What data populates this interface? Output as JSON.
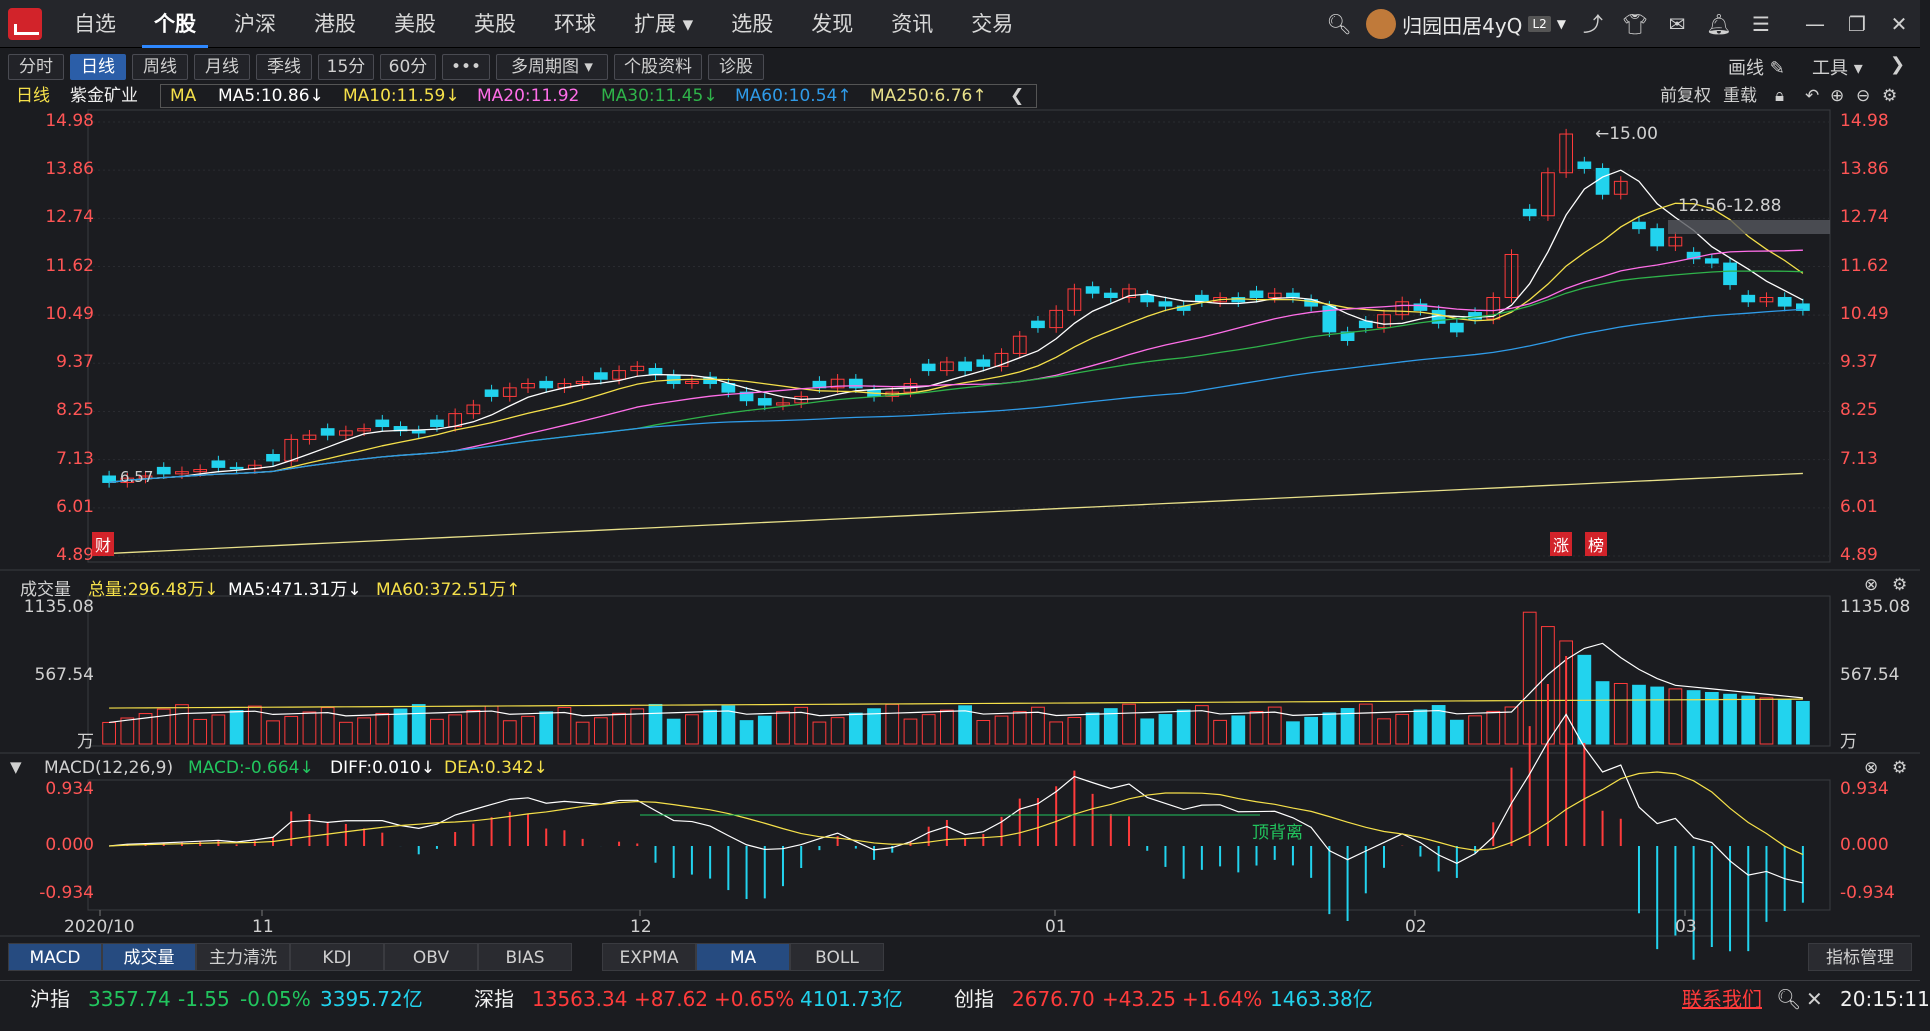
{
  "nav": {
    "items": [
      "自选",
      "个股",
      "沪深",
      "港股",
      "美股",
      "英股",
      "环球",
      "扩展",
      "选股",
      "发现",
      "资讯",
      "交易"
    ],
    "active": "个股"
  },
  "user": {
    "name": "归园田居4yQ",
    "level": "L2"
  },
  "toolbar": {
    "buttons": [
      "分时",
      "日线",
      "周线",
      "月线",
      "季线",
      "15分",
      "60分",
      "•••",
      "多周期图",
      "个股资料",
      "诊股"
    ],
    "active": "日线",
    "draw_label": "画线",
    "tools_label": "工具"
  },
  "ma_bar": {
    "period": "日线",
    "stock": "紫金矿业",
    "ma_label": "MA",
    "ma5": "MA5:10.86↓",
    "ma10": "MA10:11.59↓",
    "ma20": "MA20:11.92",
    "ma30": "MA30:11.45↓",
    "ma60": "MA60:10.54↑",
    "ma250": "MA250:6.76↑",
    "fq": "前复权",
    "reload": "重载"
  },
  "colors": {
    "up": "#ff3b3b",
    "down": "#22d3ee",
    "ma5": "#ffffff",
    "ma10": "#f5e04a",
    "ma20": "#ff6ee8",
    "ma30": "#2fb34a",
    "ma60": "#2f9be8",
    "ma250": "#e8e08a"
  },
  "price_axis": [
    "14.98",
    "13.86",
    "12.74",
    "11.62",
    "10.49",
    "9.37",
    "8.25",
    "7.13",
    "6.01",
    "4.89"
  ],
  "annotations": {
    "high": "15.00",
    "low": "6.57",
    "range": "12.56-12.88",
    "cai": "财",
    "zhang": "涨",
    "bang": "榜"
  },
  "volume": {
    "title": "成交量",
    "total": "总量:296.48万↓",
    "ma5": "MA5:471.31万↓",
    "ma60": "MA60:372.51万↑",
    "axis": [
      "1135.08",
      "567.54",
      "万"
    ]
  },
  "macd": {
    "title": "MACD(12,26,9)",
    "macd": "MACD:-0.664↓",
    "diff": "DIFF:0.010↓",
    "dea": "DEA:0.342↓",
    "axis": [
      "0.934",
      "0.000",
      "-0.934"
    ],
    "note": "顶背离"
  },
  "dates": [
    "2020/10",
    "11",
    "12",
    "01",
    "02",
    "03"
  ],
  "indicator_tabs_left": [
    "MACD",
    "成交量",
    "主力清洗",
    "KDJ",
    "OBV",
    "BIAS"
  ],
  "indicator_tabs_right": [
    "EXPMA",
    "MA",
    "BOLL"
  ],
  "indicator_manage": "指标管理",
  "status": {
    "sh_name": "沪指",
    "sh_val": "3357.74",
    "sh_chg": "-1.55",
    "sh_pct": "-0.05%",
    "sh_amt": "3395.72亿",
    "sz_name": "深指",
    "sz_val": "13563.34",
    "sz_chg": "+87.62",
    "sz_pct": "+0.65%",
    "sz_amt": "4101.73亿",
    "cy_name": "创指",
    "cy_val": "2676.70",
    "cy_chg": "+43.25",
    "cy_pct": "+1.64%",
    "cy_amt": "1463.38亿",
    "contact": "联系我们",
    "time": "20:15:11"
  },
  "chart_data": {
    "type": "candlestick",
    "ylim": [
      4.89,
      14.98
    ],
    "closes": [
      6.6,
      6.7,
      6.75,
      6.8,
      6.85,
      6.9,
      6.95,
      6.92,
      7.0,
      7.1,
      7.6,
      7.7,
      7.7,
      7.8,
      7.85,
      7.9,
      7.8,
      7.75,
      7.9,
      8.2,
      8.4,
      8.6,
      8.8,
      8.9,
      8.8,
      8.9,
      8.95,
      9.0,
      9.2,
      9.3,
      9.1,
      8.9,
      8.95,
      8.9,
      8.7,
      8.5,
      8.4,
      8.45,
      8.6,
      8.8,
      9.0,
      8.8,
      8.6,
      8.7,
      8.9,
      9.2,
      9.4,
      9.2,
      9.3,
      9.6,
      10.0,
      10.2,
      10.6,
      11.1,
      11.0,
      10.9,
      11.1,
      10.8,
      10.7,
      10.6,
      10.8,
      10.9,
      10.8,
      10.9,
      11.0,
      10.9,
      10.7,
      10.1,
      9.9,
      10.2,
      10.5,
      10.8,
      10.6,
      10.3,
      10.1,
      10.4,
      10.9,
      11.9,
      12.8,
      13.8,
      14.7,
      13.9,
      13.3,
      13.6,
      12.5,
      12.1,
      12.3,
      11.8,
      11.7,
      11.2,
      10.8,
      10.9,
      10.7,
      10.6
    ]
  }
}
